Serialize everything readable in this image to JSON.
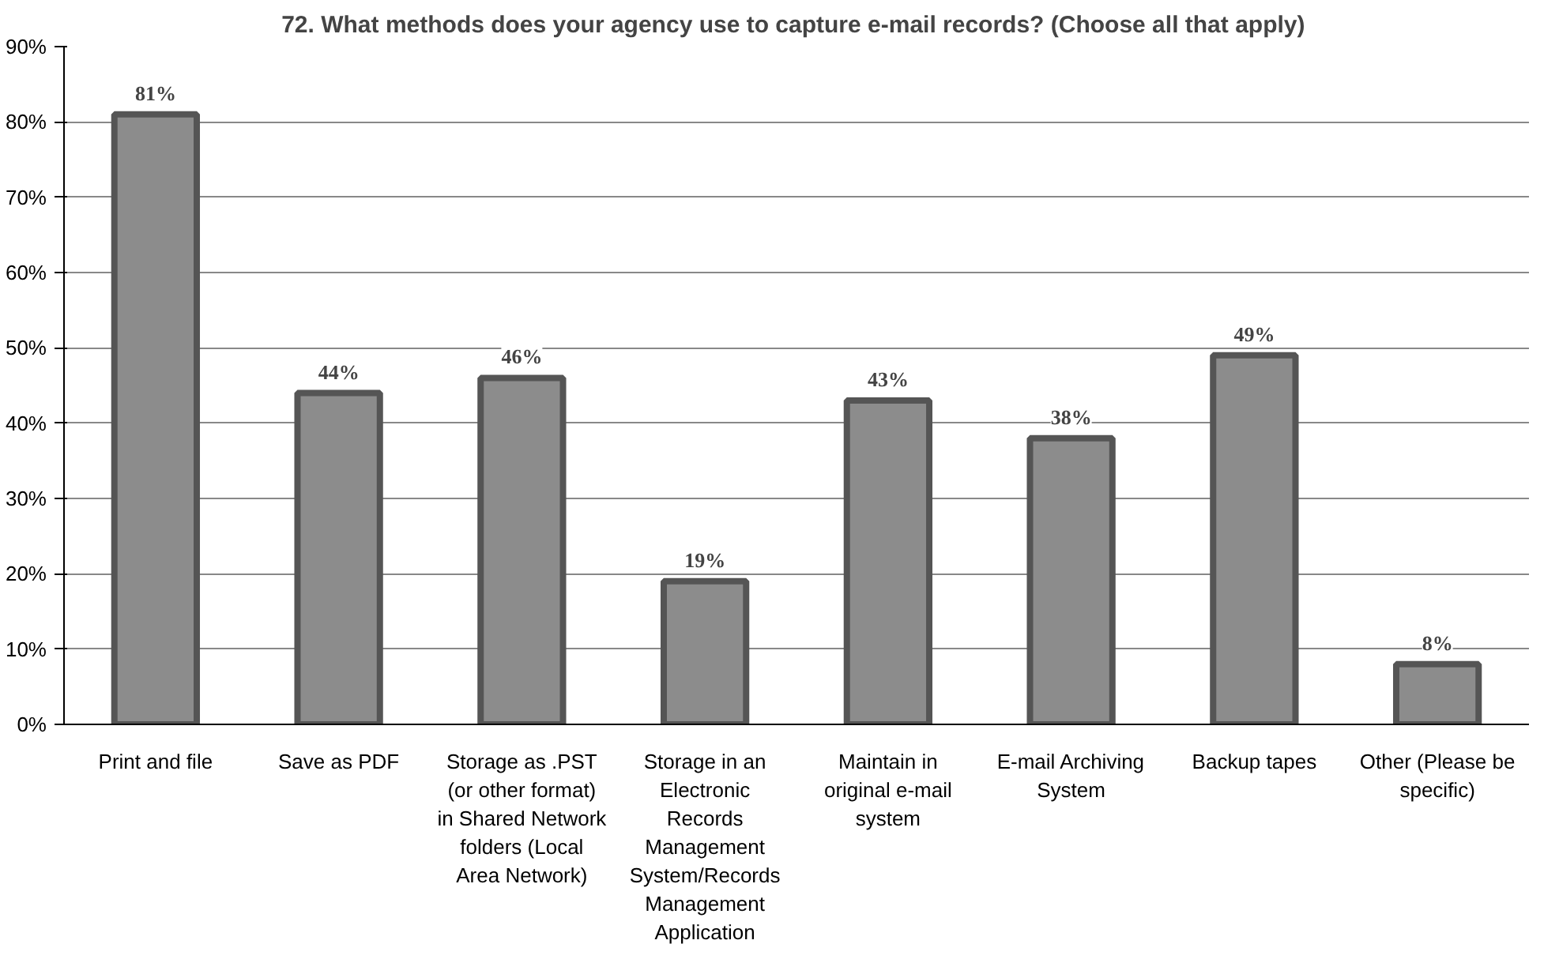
{
  "chart_data": {
    "type": "bar",
    "title": "72.  What methods does your agency use to capture e-mail records? (Choose all that apply)",
    "categories": [
      "Print and file",
      "Save as PDF",
      "Storage as .PST (or other format) in Shared Network folders (Local Area Network)",
      "Storage in an Electronic Records Management System/Records Management Application",
      "Maintain in original e-mail system",
      "E-mail Archiving System",
      "Backup tapes",
      "Other (Please be specific)"
    ],
    "values": [
      81,
      44,
      46,
      19,
      43,
      38,
      49,
      8
    ],
    "value_labels": [
      "81%",
      "44%",
      "46%",
      "19%",
      "43%",
      "38%",
      "49%",
      "8%"
    ],
    "color": "#8c8c8c",
    "ylim": [
      0,
      90
    ],
    "yticks": [
      {
        "value": 0,
        "label": "0%"
      },
      {
        "value": 10,
        "label": "10%"
      },
      {
        "value": 20,
        "label": "20%"
      },
      {
        "value": 30,
        "label": "30%"
      },
      {
        "value": 40,
        "label": "40%"
      },
      {
        "value": 50,
        "label": "50%"
      },
      {
        "value": 60,
        "label": "60%"
      },
      {
        "value": 70,
        "label": "70%"
      },
      {
        "value": 80,
        "label": "80%"
      },
      {
        "value": 90,
        "label": "90%"
      }
    ],
    "grid": "y"
  }
}
